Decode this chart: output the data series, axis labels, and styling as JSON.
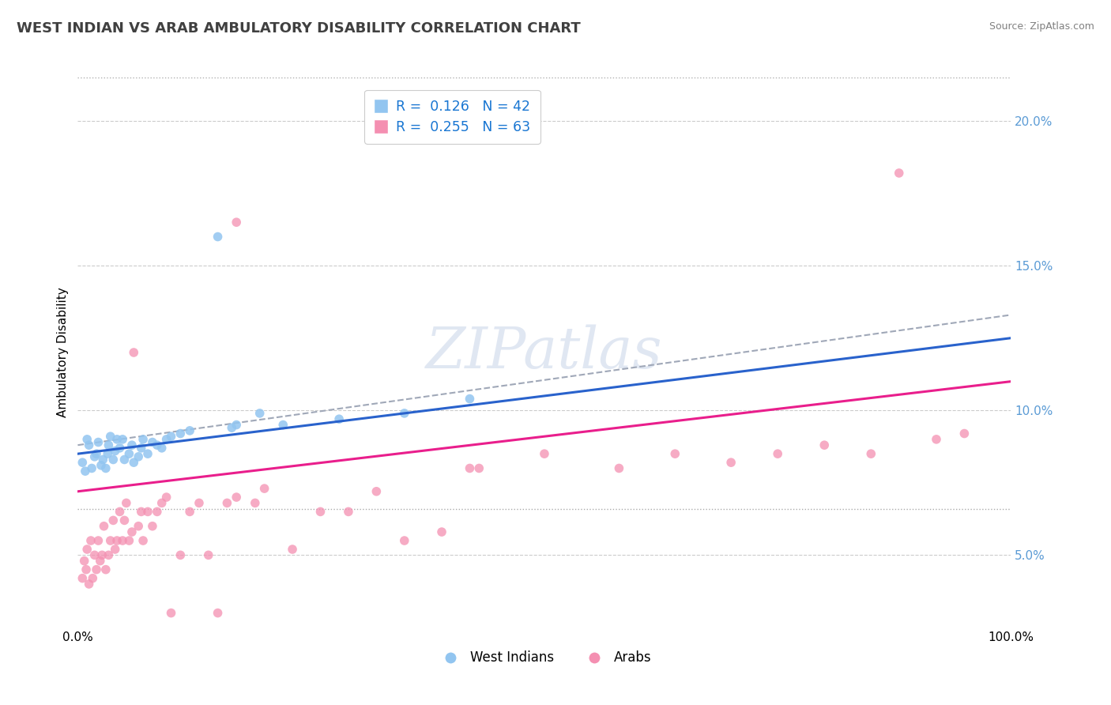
{
  "title": "WEST INDIAN VS ARAB AMBULATORY DISABILITY CORRELATION CHART",
  "source": "Source: ZipAtlas.com",
  "ylabel": "Ambulatory Disability",
  "xlim": [
    0.0,
    1.0
  ],
  "ylim": [
    0.025,
    0.215
  ],
  "y_tick_values": [
    0.05,
    0.1,
    0.15,
    0.2
  ],
  "legend_label1": "West Indians",
  "legend_label2": "Arabs",
  "color_west_indian": "#92C5F0",
  "color_arab": "#F48FB1",
  "color_line_west_indian": "#2962CC",
  "color_line_arab": "#E91E8C",
  "color_dashed": "#A0A8B8",
  "color_r_text": "#1976D2",
  "color_n_text": "#E53935",
  "color_title": "#404040",
  "color_ytick": "#5B9BD5",
  "watermark_text": "ZIPatlas",
  "west_indian_x": [
    0.005,
    0.008,
    0.01,
    0.012,
    0.015,
    0.018,
    0.02,
    0.022,
    0.025,
    0.027,
    0.03,
    0.032,
    0.033,
    0.035,
    0.038,
    0.04,
    0.042,
    0.045,
    0.048,
    0.05,
    0.055,
    0.058,
    0.06,
    0.065,
    0.068,
    0.07,
    0.075,
    0.08,
    0.085,
    0.09,
    0.095,
    0.1,
    0.11,
    0.12,
    0.15,
    0.165,
    0.17,
    0.195,
    0.22,
    0.28,
    0.35,
    0.42
  ],
  "west_indian_y": [
    0.082,
    0.079,
    0.09,
    0.088,
    0.08,
    0.084,
    0.085,
    0.089,
    0.081,
    0.083,
    0.08,
    0.085,
    0.088,
    0.091,
    0.083,
    0.086,
    0.09,
    0.087,
    0.09,
    0.083,
    0.085,
    0.088,
    0.082,
    0.084,
    0.087,
    0.09,
    0.085,
    0.089,
    0.088,
    0.087,
    0.09,
    0.091,
    0.092,
    0.093,
    0.16,
    0.094,
    0.095,
    0.099,
    0.095,
    0.097,
    0.099,
    0.104
  ],
  "arab_x": [
    0.005,
    0.007,
    0.009,
    0.01,
    0.012,
    0.014,
    0.016,
    0.018,
    0.02,
    0.022,
    0.024,
    0.026,
    0.028,
    0.03,
    0.033,
    0.035,
    0.038,
    0.04,
    0.042,
    0.045,
    0.048,
    0.05,
    0.052,
    0.055,
    0.058,
    0.06,
    0.065,
    0.068,
    0.07,
    0.075,
    0.08,
    0.085,
    0.09,
    0.095,
    0.1,
    0.11,
    0.12,
    0.13,
    0.14,
    0.15,
    0.16,
    0.17,
    0.19,
    0.2,
    0.23,
    0.26,
    0.29,
    0.32,
    0.35,
    0.39,
    0.43,
    0.5,
    0.58,
    0.64,
    0.7,
    0.75,
    0.8,
    0.85,
    0.88,
    0.92,
    0.95,
    0.42,
    0.17
  ],
  "arab_y": [
    0.042,
    0.048,
    0.045,
    0.052,
    0.04,
    0.055,
    0.042,
    0.05,
    0.045,
    0.055,
    0.048,
    0.05,
    0.06,
    0.045,
    0.05,
    0.055,
    0.062,
    0.052,
    0.055,
    0.065,
    0.055,
    0.062,
    0.068,
    0.055,
    0.058,
    0.12,
    0.06,
    0.065,
    0.055,
    0.065,
    0.06,
    0.065,
    0.068,
    0.07,
    0.03,
    0.05,
    0.065,
    0.068,
    0.05,
    0.03,
    0.068,
    0.07,
    0.068,
    0.073,
    0.052,
    0.065,
    0.065,
    0.072,
    0.055,
    0.058,
    0.08,
    0.085,
    0.08,
    0.085,
    0.082,
    0.085,
    0.088,
    0.085,
    0.182,
    0.09,
    0.092,
    0.08,
    0.165
  ]
}
